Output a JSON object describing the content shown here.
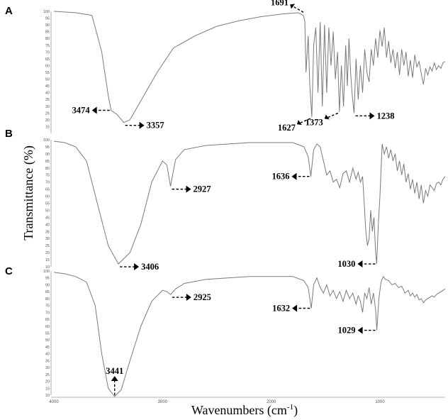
{
  "chart_data": [
    {
      "panel": "A",
      "type": "line",
      "x_range": [
        4000,
        400
      ],
      "y_ticks": [
        "100",
        "95",
        "90",
        "85",
        "80",
        "75",
        "70",
        "65",
        "60",
        "55",
        "50",
        "45",
        "40",
        "35",
        "30",
        "25",
        "20",
        "15"
      ],
      "peaks": [
        {
          "label": "3474",
          "x": 3474,
          "side": "left"
        },
        {
          "label": "3357",
          "x": 3357,
          "side": "right"
        },
        {
          "label": "1691",
          "x": 1691,
          "side": "left-up"
        },
        {
          "label": "1627",
          "x": 1627,
          "side": "left-down"
        },
        {
          "label": "1373",
          "x": 1373,
          "side": "left-down"
        },
        {
          "label": "1238",
          "x": 1238,
          "side": "right"
        }
      ],
      "x": [
        4000,
        3800,
        3650,
        3560,
        3500,
        3474,
        3420,
        3357,
        3300,
        3200,
        3050,
        2900,
        2700,
        2500,
        2300,
        2100,
        1900,
        1750,
        1705,
        1691,
        1680,
        1660,
        1645,
        1627,
        1610,
        1590,
        1570,
        1550,
        1530,
        1510,
        1490,
        1470,
        1450,
        1430,
        1410,
        1390,
        1373,
        1355,
        1335,
        1315,
        1300,
        1285,
        1270,
        1255,
        1238,
        1220,
        1200,
        1180,
        1160,
        1140,
        1120,
        1100,
        1080,
        1060,
        1040,
        1020,
        1000,
        980,
        960,
        940,
        920,
        900,
        880,
        860,
        840,
        820,
        800,
        780,
        760,
        740,
        720,
        700,
        680,
        660,
        640,
        620,
        600,
        580,
        560,
        540,
        520,
        500,
        480,
        460,
        440,
        420,
        400
      ],
      "y": [
        100,
        99,
        97,
        70,
        38,
        27,
        24,
        18,
        20,
        34,
        55,
        73,
        82,
        89,
        93,
        96,
        98,
        99,
        97,
        93,
        55,
        82,
        45,
        22,
        75,
        88,
        40,
        92,
        30,
        90,
        40,
        88,
        60,
        85,
        50,
        70,
        26,
        60,
        30,
        75,
        45,
        80,
        55,
        38,
        25,
        65,
        35,
        60,
        40,
        72,
        55,
        48,
        72,
        60,
        80,
        66,
        86,
        74,
        88,
        66,
        78,
        62,
        72,
        58,
        70,
        53,
        72,
        60,
        70,
        52,
        64,
        51,
        68,
        59,
        63,
        54,
        46,
        58,
        53,
        59,
        56,
        62,
        57,
        60,
        58,
        62,
        63
      ]
    },
    {
      "panel": "B",
      "type": "line",
      "x_range": [
        4000,
        400
      ],
      "y_ticks": [
        "100",
        "95",
        "90",
        "85",
        "80",
        "75",
        "70",
        "65",
        "60",
        "55",
        "50",
        "45",
        "40",
        "35",
        "30",
        "25",
        "20",
        "15",
        "10"
      ],
      "peaks": [
        {
          "label": "3406",
          "x": 3406,
          "side": "right"
        },
        {
          "label": "2927",
          "x": 2927,
          "side": "right"
        },
        {
          "label": "1636",
          "x": 1636,
          "side": "left"
        },
        {
          "label": "1030",
          "x": 1030,
          "side": "left"
        }
      ],
      "x": [
        4000,
        3900,
        3800,
        3700,
        3600,
        3500,
        3406,
        3300,
        3200,
        3100,
        3000,
        2960,
        2927,
        2880,
        2800,
        2600,
        2400,
        2200,
        2000,
        1800,
        1700,
        1660,
        1636,
        1610,
        1580,
        1550,
        1520,
        1490,
        1460,
        1430,
        1400,
        1370,
        1340,
        1310,
        1280,
        1250,
        1220,
        1200,
        1180,
        1160,
        1145,
        1130,
        1115,
        1100,
        1085,
        1070,
        1055,
        1040,
        1030,
        1015,
        1000,
        980,
        960,
        940,
        920,
        900,
        880,
        860,
        840,
        820,
        800,
        780,
        760,
        740,
        720,
        700,
        680,
        660,
        640,
        620,
        600,
        580,
        560,
        540,
        520,
        500,
        480,
        460,
        440,
        420,
        400
      ],
      "y": [
        99,
        98,
        95,
        85,
        55,
        25,
        12,
        20,
        40,
        70,
        85,
        82,
        67,
        86,
        93,
        96,
        97,
        98,
        98,
        98,
        95,
        88,
        74,
        93,
        97,
        95,
        85,
        75,
        78,
        70,
        72,
        66,
        76,
        78,
        70,
        80,
        72,
        77,
        70,
        74,
        55,
        35,
        25,
        30,
        50,
        35,
        45,
        20,
        12,
        40,
        60,
        97,
        90,
        95,
        87,
        93,
        85,
        90,
        78,
        85,
        75,
        83,
        70,
        76,
        65,
        72,
        62,
        70,
        58,
        68,
        55,
        64,
        60,
        68,
        66,
        64,
        69,
        70,
        68,
        72,
        74
      ]
    },
    {
      "panel": "C",
      "type": "line",
      "x_range": [
        4000,
        400
      ],
      "y_ticks": [
        "100",
        "95",
        "90",
        "85",
        "80",
        "75",
        "70",
        "65",
        "60",
        "55",
        "50",
        "45",
        "40",
        "35",
        "30",
        "25",
        "20",
        "15",
        "10"
      ],
      "peaks": [
        {
          "label": "3441",
          "x": 3441,
          "side": "up"
        },
        {
          "label": "2925",
          "x": 2925,
          "side": "right"
        },
        {
          "label": "1632",
          "x": 1632,
          "side": "left"
        },
        {
          "label": "1029",
          "x": 1029,
          "side": "left"
        }
      ],
      "x": [
        4000,
        3900,
        3800,
        3700,
        3620,
        3560,
        3500,
        3441,
        3380,
        3300,
        3200,
        3100,
        3000,
        2960,
        2925,
        2880,
        2800,
        2600,
        2400,
        2200,
        2000,
        1800,
        1700,
        1660,
        1632,
        1610,
        1580,
        1550,
        1520,
        1490,
        1460,
        1430,
        1400,
        1370,
        1340,
        1310,
        1280,
        1250,
        1220,
        1200,
        1180,
        1160,
        1140,
        1120,
        1100,
        1080,
        1060,
        1040,
        1029,
        1010,
        990,
        970,
        950,
        920,
        890,
        860,
        830,
        800,
        770,
        740,
        720,
        700,
        680,
        660,
        640,
        620,
        600,
        580,
        560,
        540,
        520,
        500,
        480,
        460,
        440,
        420,
        400
      ],
      "y": [
        99,
        98,
        96,
        92,
        75,
        40,
        15,
        9,
        14,
        35,
        60,
        78,
        86,
        85,
        83,
        87,
        91,
        94,
        95,
        96,
        96,
        96,
        93,
        88,
        73,
        90,
        95,
        88,
        84,
        90,
        82,
        86,
        80,
        85,
        78,
        86,
        80,
        84,
        76,
        82,
        78,
        70,
        84,
        80,
        88,
        76,
        84,
        72,
        57,
        80,
        92,
        96,
        94,
        93,
        90,
        91,
        88,
        89,
        84,
        86,
        82,
        84,
        81,
        83,
        79,
        80,
        77,
        79,
        80,
        81,
        82,
        81,
        83,
        84,
        85,
        86,
        87
      ]
    }
  ],
  "axis": {
    "ylabel": "Transmittance (%)",
    "xlabel_main": "Wavenumbers (cm",
    "xlabel_sup": "-1",
    "xlabel_end": ")",
    "x_ticks": [
      {
        "label": "4000",
        "value": 4000
      },
      {
        "label": "3000",
        "value": 3000
      },
      {
        "label": "2000",
        "value": 2000
      },
      {
        "label": "1000",
        "value": 1000
      }
    ]
  }
}
